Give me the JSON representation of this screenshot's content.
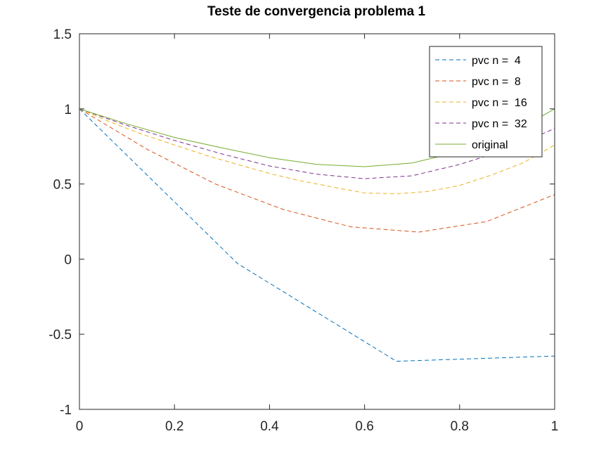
{
  "chart_data": {
    "type": "line",
    "title": "Teste de convergencia problema 1",
    "xlabel": "",
    "ylabel": "",
    "xlim": [
      0,
      1
    ],
    "ylim": [
      -1,
      1.5
    ],
    "xticks": [
      0,
      0.2,
      0.4,
      0.6,
      0.8,
      1
    ],
    "yticks": [
      -1,
      -0.5,
      0,
      0.5,
      1,
      1.5
    ],
    "xtick_labels": [
      "0",
      "0.2",
      "0.4",
      "0.6",
      "0.8",
      "1"
    ],
    "ytick_labels": [
      "-1",
      "-0.5",
      "0",
      "0.5",
      "1",
      "1.5"
    ],
    "grid": false,
    "legend_position": "top-right",
    "series": [
      {
        "name": "pvc n =  4",
        "color": "#0072bd",
        "dash": "dashed",
        "x": [
          0,
          0.333,
          0.667,
          1
        ],
        "y": [
          1,
          -0.03,
          -0.68,
          -0.645
        ]
      },
      {
        "name": "pvc n =  8",
        "color": "#d95319",
        "dash": "dashed",
        "x": [
          0,
          0.143,
          0.286,
          0.429,
          0.571,
          0.714,
          0.857,
          1
        ],
        "y": [
          1,
          0.73,
          0.5,
          0.33,
          0.215,
          0.18,
          0.25,
          0.43
        ]
      },
      {
        "name": "pvc n =  16",
        "color": "#edb120",
        "dash": "dashed",
        "x": [
          0,
          0.067,
          0.133,
          0.2,
          0.267,
          0.333,
          0.4,
          0.467,
          0.533,
          0.6,
          0.667,
          0.733,
          0.8,
          0.867,
          0.933,
          1
        ],
        "y": [
          1,
          0.91,
          0.83,
          0.76,
          0.69,
          0.63,
          0.57,
          0.52,
          0.48,
          0.44,
          0.435,
          0.45,
          0.49,
          0.56,
          0.64,
          0.76
        ]
      },
      {
        "name": "pvc n =  32",
        "color": "#7e2f8e",
        "dash": "dashed",
        "x": [
          0,
          0.1,
          0.2,
          0.3,
          0.4,
          0.5,
          0.6,
          0.7,
          0.8,
          0.9,
          1
        ],
        "y": [
          1,
          0.89,
          0.79,
          0.7,
          0.62,
          0.565,
          0.535,
          0.555,
          0.63,
          0.73,
          0.87
        ]
      },
      {
        "name": "original",
        "color": "#77ac30",
        "dash": "solid",
        "x": [
          0,
          0.1,
          0.2,
          0.3,
          0.4,
          0.5,
          0.6,
          0.7,
          0.8,
          0.9,
          1
        ],
        "y": [
          1,
          0.9,
          0.81,
          0.74,
          0.675,
          0.63,
          0.615,
          0.64,
          0.715,
          0.82,
          1.0
        ]
      }
    ]
  }
}
